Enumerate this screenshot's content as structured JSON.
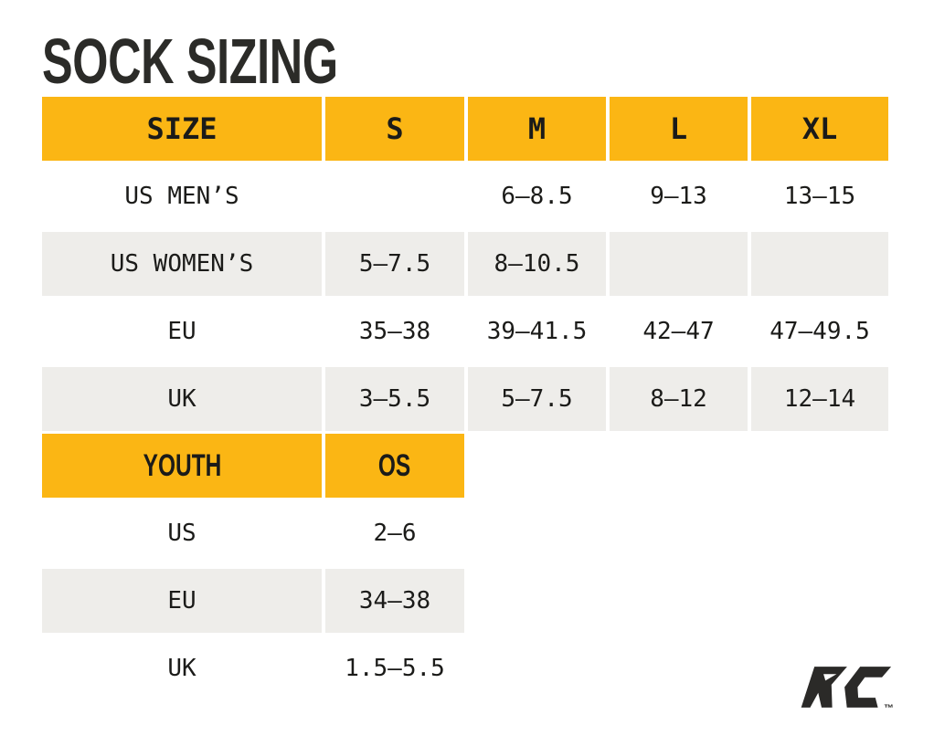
{
  "title": "SOCK SIZING",
  "colors": {
    "header_bg": "#FBB614",
    "shaded_row_bg": "#EEEDEA",
    "text": "#1B1B19",
    "title_text": "#2B2B28",
    "logo": "#2B2A28"
  },
  "chart_data": [
    {
      "type": "table",
      "title": "SOCK SIZING",
      "columns": [
        "SIZE",
        "S",
        "M",
        "L",
        "XL"
      ],
      "rows": [
        [
          "US MEN’S",
          "",
          "6–8.5",
          "9–13",
          "13–15"
        ],
        [
          "US WOMEN’S",
          "5–7.5",
          "8–10.5",
          "",
          ""
        ],
        [
          "EU",
          "35–38",
          "39–41.5",
          "42–47",
          "47–49.5"
        ],
        [
          "UK",
          "3–5.5",
          "5–7.5",
          "8–12",
          "12–14"
        ]
      ],
      "shaded_row_indices": [
        1,
        3
      ]
    },
    {
      "type": "table",
      "columns": [
        "YOUTH",
        "OS"
      ],
      "rows": [
        [
          "US",
          "2–6"
        ],
        [
          "EU",
          "34–38"
        ],
        [
          "UK",
          "1.5–5.5"
        ]
      ],
      "shaded_row_indices": [
        1
      ]
    }
  ],
  "logo": {
    "text": "RC",
    "trademark": "™"
  }
}
